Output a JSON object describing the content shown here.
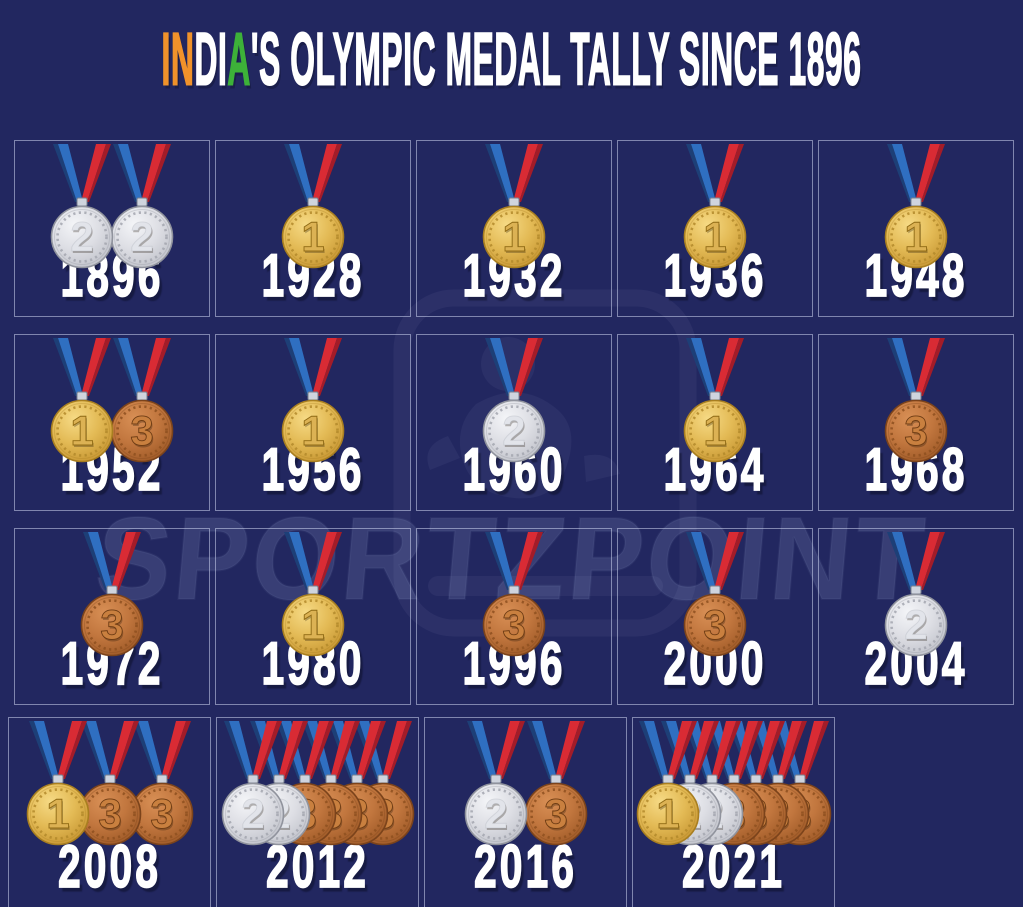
{
  "title": {
    "segments": [
      {
        "text": "IN",
        "color": "#f0922b"
      },
      {
        "text": "DI",
        "color": "#ffffff"
      },
      {
        "text": "A",
        "color": "#3db139"
      },
      {
        "text": "'S OLYMPIC MEDAL TALLY SINCE 1896",
        "color": "#ffffff"
      }
    ]
  },
  "watermark": {
    "text": "SPORTZPOINT"
  },
  "colors": {
    "background": "#222760",
    "cell_border": "rgba(205,213,240,0.55)",
    "year_text": "#ffffff",
    "ribbon": {
      "blue": "#2f6fc1",
      "blue_dark": "#1d3f77",
      "red": "#d92b34",
      "red_dark": "#a31c28",
      "clasp": "#cfd4de"
    }
  },
  "medal_types": {
    "gold": {
      "numeral": "1",
      "rim": "#a87e20",
      "face_light": "#f6da85",
      "face_mid": "#e3ba55",
      "face_edge": "#c59431",
      "numeral_fill": "#dcb254",
      "numeral_stroke": "#8f6a15",
      "detail": "#b3892b"
    },
    "silver": {
      "numeral": "2",
      "rim": "#90939d",
      "face_light": "#f4f5f8",
      "face_mid": "#dddee4",
      "face_edge": "#bfc1c9",
      "numeral_fill": "#e2e4ea",
      "numeral_stroke": "#84889331",
      "detail": "#a3a6af"
    },
    "bronze": {
      "numeral": "3",
      "rim": "#7b431b",
      "face_light": "#d88f55",
      "face_mid": "#c1763e",
      "face_edge": "#9c5826",
      "numeral_fill": "#c9803f",
      "numeral_stroke": "#6e3c14",
      "detail": "#8e5020"
    }
  },
  "grid": {
    "rows": [
      [
        {
          "year": "1896",
          "medals": [
            "silver",
            "silver"
          ]
        },
        {
          "year": "1928",
          "medals": [
            "gold"
          ]
        },
        {
          "year": "1932",
          "medals": [
            "gold"
          ]
        },
        {
          "year": "1936",
          "medals": [
            "gold"
          ]
        },
        {
          "year": "1948",
          "medals": [
            "gold"
          ]
        }
      ],
      [
        {
          "year": "1952",
          "medals": [
            "gold",
            "bronze"
          ]
        },
        {
          "year": "1956",
          "medals": [
            "gold"
          ]
        },
        {
          "year": "1960",
          "medals": [
            "silver"
          ]
        },
        {
          "year": "1964",
          "medals": [
            "gold"
          ]
        },
        {
          "year": "1968",
          "medals": [
            "bronze"
          ]
        }
      ],
      [
        {
          "year": "1972",
          "medals": [
            "bronze"
          ]
        },
        {
          "year": "1980",
          "medals": [
            "gold"
          ]
        },
        {
          "year": "1996",
          "medals": [
            "bronze"
          ]
        },
        {
          "year": "2000",
          "medals": [
            "bronze"
          ]
        },
        {
          "year": "2004",
          "medals": [
            "silver"
          ]
        }
      ],
      [
        {
          "year": "2008",
          "medals": [
            "gold",
            "bronze",
            "bronze"
          ]
        },
        {
          "year": "2012",
          "medals": [
            "silver",
            "silver",
            "bronze",
            "bronze",
            "bronze",
            "bronze"
          ]
        },
        {
          "year": "2016",
          "medals": [
            "silver",
            "bronze"
          ]
        },
        {
          "year": "2021",
          "medals": [
            "gold",
            "silver",
            "silver",
            "bronze",
            "bronze",
            "bronze",
            "bronze"
          ]
        }
      ]
    ]
  },
  "chart_data": {
    "type": "table",
    "title": "INDIA'S OLYMPIC MEDAL TALLY SINCE 1896",
    "categories": [
      "1896",
      "1928",
      "1932",
      "1936",
      "1948",
      "1952",
      "1956",
      "1960",
      "1964",
      "1968",
      "1972",
      "1980",
      "1996",
      "2000",
      "2004",
      "2008",
      "2012",
      "2016",
      "2021"
    ],
    "series": [
      {
        "name": "gold",
        "values": [
          0,
          1,
          1,
          1,
          1,
          1,
          1,
          0,
          1,
          0,
          0,
          1,
          0,
          0,
          0,
          1,
          0,
          0,
          1
        ]
      },
      {
        "name": "silver",
        "values": [
          2,
          0,
          0,
          0,
          0,
          0,
          0,
          1,
          0,
          0,
          0,
          0,
          0,
          0,
          1,
          0,
          2,
          1,
          2
        ]
      },
      {
        "name": "bronze",
        "values": [
          0,
          0,
          0,
          0,
          0,
          1,
          0,
          0,
          0,
          1,
          1,
          0,
          1,
          1,
          0,
          2,
          4,
          1,
          4
        ]
      }
    ],
    "legend_position": "none",
    "notes": "Each cell shows medal icons (1=gold, 2=silver, 3=bronze) above the Olympic year"
  }
}
